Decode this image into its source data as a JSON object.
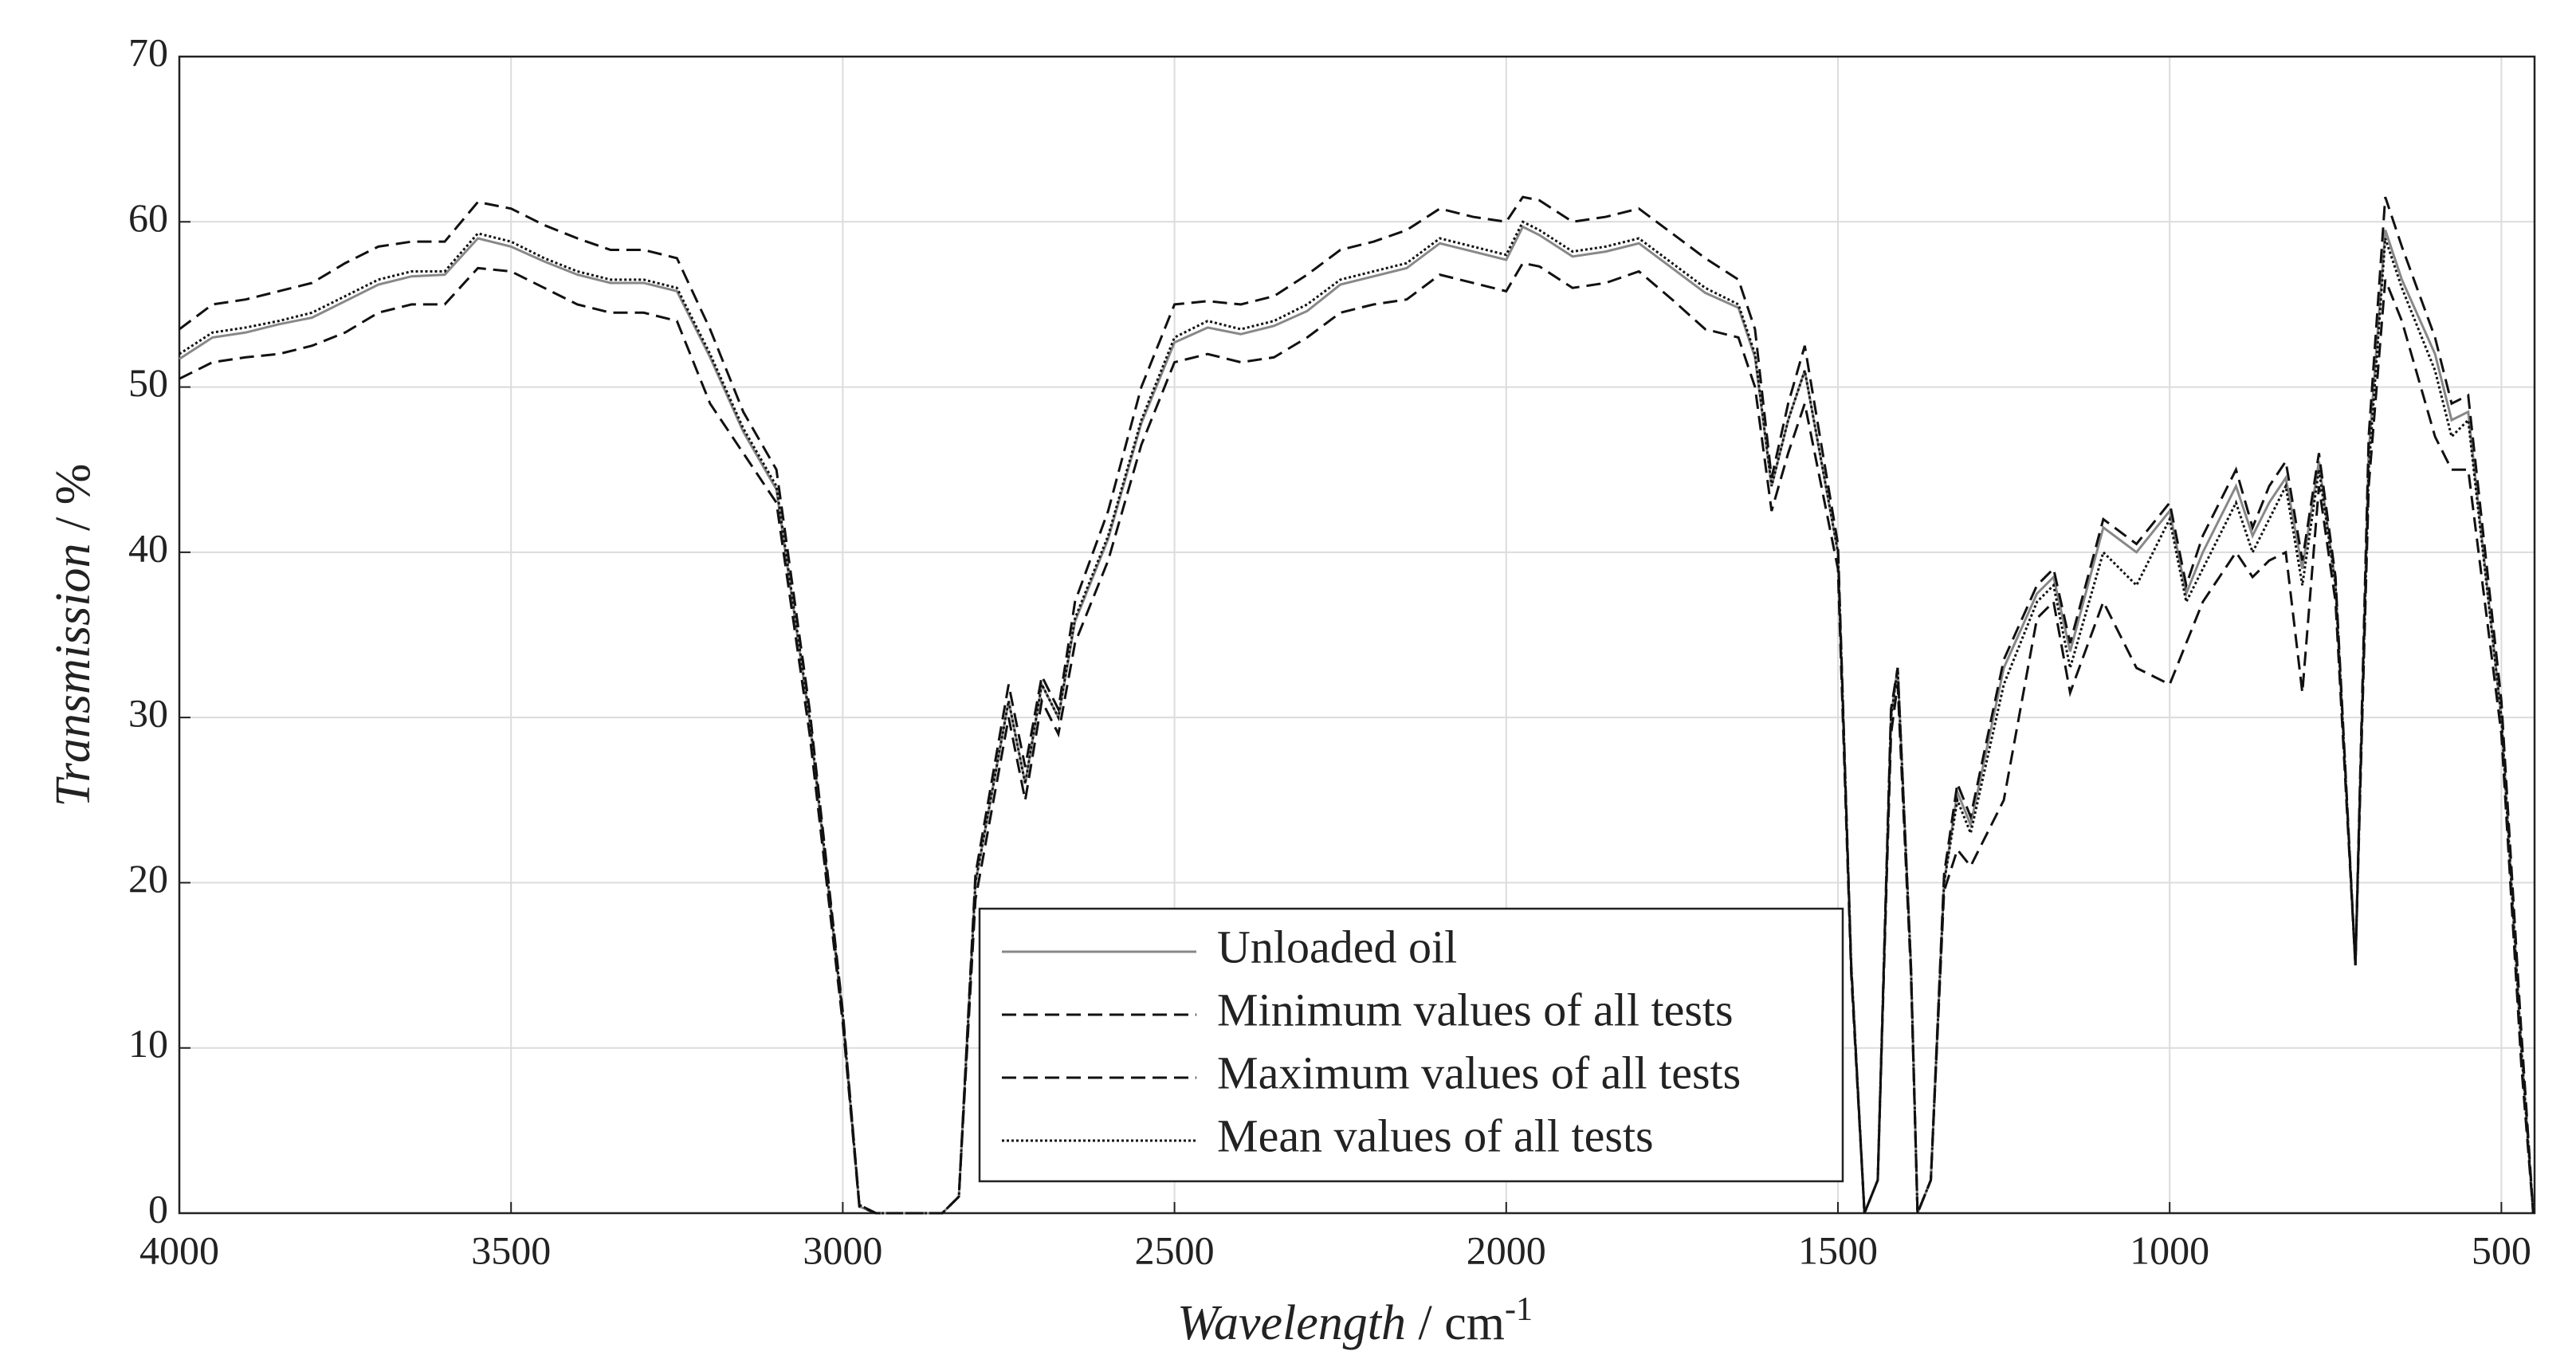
{
  "chart_data": {
    "type": "line",
    "xlabel": [
      "Wavelength",
      " / cm",
      "-1"
    ],
    "ylabel": [
      "Transmission",
      " / %"
    ],
    "xlim": [
      4000,
      450
    ],
    "ylim": [
      0,
      70
    ],
    "xticks": [
      4000,
      3500,
      3000,
      2500,
      2000,
      1500,
      1000,
      500
    ],
    "yticks": [
      0,
      10,
      20,
      30,
      40,
      50,
      60,
      70
    ],
    "grid": true,
    "legend": "lower center",
    "x": [
      4000,
      3950,
      3900,
      3850,
      3800,
      3750,
      3700,
      3650,
      3600,
      3550,
      3500,
      3450,
      3400,
      3350,
      3300,
      3250,
      3200,
      3150,
      3100,
      3050,
      3000,
      2975,
      2950,
      2900,
      2850,
      2825,
      2800,
      2750,
      2725,
      2700,
      2675,
      2650,
      2600,
      2550,
      2500,
      2450,
      2400,
      2350,
      2300,
      2250,
      2200,
      2150,
      2100,
      2050,
      2000,
      1975,
      1950,
      1900,
      1850,
      1800,
      1750,
      1700,
      1650,
      1625,
      1600,
      1575,
      1550,
      1500,
      1480,
      1460,
      1440,
      1420,
      1410,
      1390,
      1380,
      1360,
      1340,
      1320,
      1300,
      1250,
      1200,
      1175,
      1150,
      1100,
      1050,
      1000,
      975,
      950,
      900,
      875,
      850,
      825,
      800,
      775,
      750,
      720,
      700,
      675,
      650,
      600,
      575,
      550,
      500,
      470,
      452
    ],
    "series": [
      {
        "name": "Unloaded oil",
        "color": "#888888",
        "dash": "solid",
        "values": [
          51.7,
          53,
          53.3,
          53.8,
          54.2,
          55.2,
          56.2,
          56.7,
          56.8,
          59,
          58.5,
          57.6,
          56.8,
          56.3,
          56.3,
          55.8,
          51.8,
          47.3,
          43.8,
          29.8,
          11.8,
          0.4,
          0,
          0,
          0,
          1,
          20,
          31,
          26,
          32,
          30,
          35.8,
          40.8,
          47.8,
          52.7,
          53.6,
          53.2,
          53.7,
          54.6,
          56.2,
          56.7,
          57.2,
          58.7,
          58.2,
          57.7,
          59.7,
          59.2,
          57.9,
          58.2,
          58.7,
          57.2,
          55.7,
          54.8,
          51.8,
          44,
          48,
          51,
          40,
          15,
          0,
          2,
          30,
          33,
          15,
          0,
          2,
          20,
          25.5,
          23.5,
          33,
          37.5,
          38.5,
          34,
          41.5,
          40,
          42.5,
          37.5,
          40,
          44,
          41,
          43,
          44.5,
          39,
          45.5,
          38,
          15,
          46,
          59.5,
          56.5,
          52,
          48,
          48.5,
          30,
          10,
          0
        ]
      },
      {
        "name": "Minimum values of all tests",
        "color": "#111111",
        "dash": "dashed",
        "values": [
          50.5,
          51.5,
          51.8,
          52,
          52.5,
          53.3,
          54.5,
          55,
          55,
          57.2,
          57,
          56,
          55,
          54.5,
          54.5,
          54,
          49,
          46,
          43,
          29,
          11.5,
          0.4,
          0,
          0,
          0,
          1,
          19,
          30,
          25,
          31,
          29,
          34.5,
          39.5,
          46.5,
          51.5,
          52,
          51.5,
          51.8,
          53,
          54.5,
          55,
          55.3,
          56.8,
          56.3,
          55.8,
          57.5,
          57.3,
          56,
          56.3,
          57,
          55.3,
          53.5,
          53,
          50,
          42.5,
          46,
          49,
          39,
          14.5,
          0,
          2,
          29,
          32,
          14.5,
          0,
          2,
          19.5,
          22,
          21,
          25,
          36,
          37,
          31.5,
          37,
          33,
          32,
          34.5,
          37,
          40,
          38.5,
          39.5,
          40,
          31.5,
          44,
          37,
          15,
          44,
          56.5,
          54,
          47,
          45,
          45,
          29,
          9,
          0
        ]
      },
      {
        "name": "Maximum values of all tests",
        "color": "#111111",
        "dash": "dashed",
        "values": [
          53.5,
          55,
          55.3,
          55.8,
          56.3,
          57.5,
          58.5,
          58.8,
          58.8,
          61.2,
          60.8,
          59.8,
          59,
          58.3,
          58.3,
          57.8,
          53.5,
          48.5,
          45,
          30.5,
          12.2,
          0.5,
          0,
          0,
          0,
          1,
          20.5,
          32,
          27,
          32.5,
          30.5,
          37,
          42.5,
          50,
          55,
          55.2,
          55,
          55.5,
          56.8,
          58.3,
          58.8,
          59.5,
          60.8,
          60.3,
          60,
          61.5,
          61.3,
          60,
          60.3,
          60.8,
          59.3,
          57.8,
          56.5,
          53.5,
          44.5,
          49,
          52.5,
          40.5,
          15,
          0,
          2,
          30.5,
          33,
          15,
          0,
          2,
          20.5,
          26,
          24,
          33.5,
          38,
          39,
          34.5,
          42,
          40.5,
          43,
          38,
          41,
          45,
          41.5,
          44,
          45.5,
          39.5,
          46,
          38.5,
          15,
          47,
          61.5,
          58.5,
          53,
          49,
          49.5,
          31,
          11,
          0
        ]
      },
      {
        "name": "Mean values of all tests",
        "color": "#111111",
        "dash": "dotted",
        "values": [
          52,
          53.3,
          53.6,
          54,
          54.5,
          55.5,
          56.5,
          57,
          57,
          59.3,
          58.8,
          57.8,
          57,
          56.5,
          56.5,
          56,
          52,
          47.5,
          44,
          30,
          12,
          0.5,
          0,
          0,
          0,
          1,
          20,
          31,
          26,
          32,
          30,
          36,
          41,
          48,
          53,
          54,
          53.5,
          54,
          55,
          56.5,
          57,
          57.5,
          59,
          58.5,
          58,
          60,
          59.5,
          58.2,
          58.5,
          59,
          57.5,
          56,
          55,
          52,
          44,
          48,
          51,
          40,
          15,
          0,
          2,
          30,
          33,
          15,
          0,
          2,
          20,
          25,
          23,
          32,
          37,
          38,
          33,
          40,
          38,
          42,
          37,
          39,
          43,
          40,
          42,
          44,
          38,
          45,
          38,
          15,
          45,
          59,
          56,
          51,
          47,
          48,
          30,
          10,
          0
        ]
      }
    ]
  }
}
